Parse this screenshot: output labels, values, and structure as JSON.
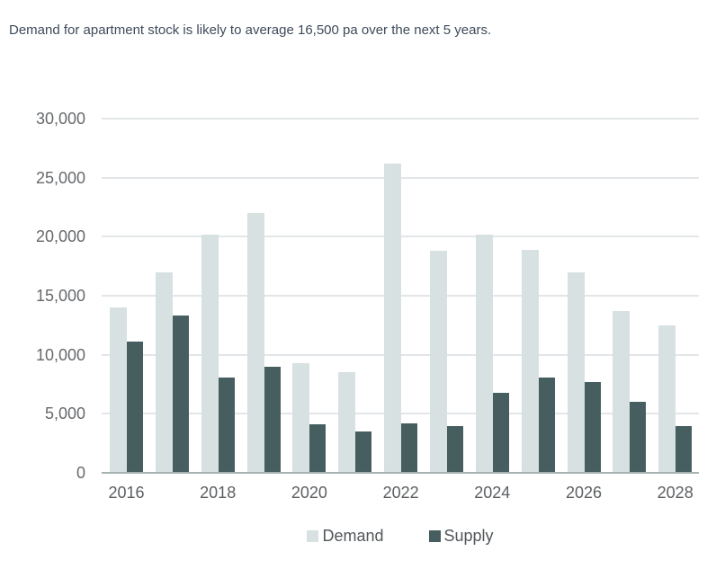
{
  "title": "Demand for apartment stock is likely to average 16,500 pa over the next 5 years.",
  "chart_data": {
    "type": "bar",
    "title": "Demand for apartment stock is likely to average 16,500 pa over the next 5 years.",
    "categories": [
      2016,
      2017,
      2018,
      2019,
      2020,
      2021,
      2022,
      2023,
      2024,
      2025,
      2026,
      2027,
      2028
    ],
    "series": [
      {
        "name": "Demand",
        "color": "#d7e1e2",
        "values": [
          14000,
          17000,
          20200,
          22000,
          9300,
          8500,
          26200,
          18800,
          20200,
          18900,
          17000,
          13700,
          12500
        ]
      },
      {
        "name": "Supply",
        "color": "#475e60",
        "values": [
          11100,
          13300,
          8100,
          9000,
          4100,
          3500,
          4200,
          4000,
          6800,
          8100,
          7700,
          6000,
          4000
        ]
      }
    ],
    "xlabel": "",
    "ylabel": "",
    "ylim": [
      0,
      30000
    ],
    "ytick_interval": 5000,
    "ytick_labels": [
      "0",
      "5,000",
      "10,000",
      "15,000",
      "20,000",
      "25,000",
      "30,000"
    ],
    "xtick_labels": [
      "2016",
      "2018",
      "2020",
      "2022",
      "2024",
      "2026",
      "2028"
    ],
    "xtick_indices": [
      0,
      2,
      4,
      6,
      8,
      10,
      12
    ],
    "grid": "horizontal",
    "gridline_color": "#e2e6e8",
    "baseline_color": "#a7b2b2",
    "legend_position": "bottom"
  }
}
